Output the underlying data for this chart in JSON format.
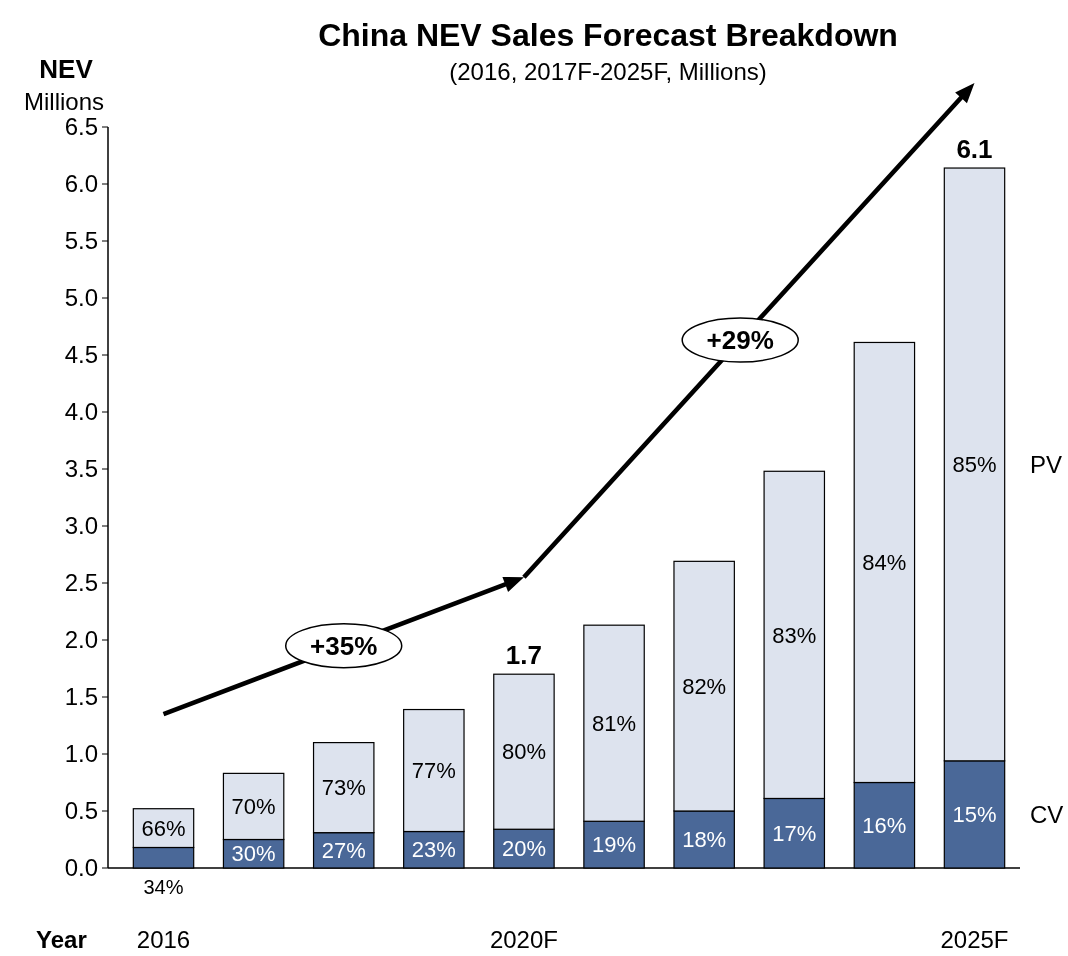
{
  "chart_data": {
    "type": "bar",
    "stacked": true,
    "title": "China NEV Sales Forecast Breakdown",
    "subtitle": "(2016, 2017F-2025F, Millions)",
    "ylabel": "NEV\nMillions",
    "xlabel": "Year",
    "categories": [
      "2016",
      null,
      null,
      null,
      "2020F",
      null,
      null,
      null,
      null,
      "2025F"
    ],
    "series": [
      {
        "name": "CV",
        "color": "#4a6898",
        "values": [
          0.18,
          0.25,
          0.31,
          0.32,
          0.34,
          0.41,
          0.5,
          0.61,
          0.75,
          0.94
        ]
      },
      {
        "name": "PV",
        "color": "#dde3ee",
        "values": [
          0.34,
          0.58,
          0.79,
          1.07,
          1.36,
          1.72,
          2.19,
          2.87,
          3.86,
          5.2
        ]
      }
    ],
    "totals": [
      null,
      null,
      null,
      null,
      "1.7",
      null,
      null,
      null,
      null,
      "6.1"
    ],
    "annotations": [
      "+35%",
      "+29%",
      "34%",
      "30%",
      "27%",
      "23%",
      "20%",
      "19%",
      "18%",
      "17%",
      "16%",
      "15%",
      "66%",
      "70%",
      "73%",
      "77%",
      "80%",
      "81%",
      "82%",
      "83%",
      "84%",
      "85%"
    ],
    "ylim": [
      0,
      6.5
    ],
    "yticks": [
      {
        "value": 0,
        "label": "0.0"
      },
      0.5,
      {
        "value": 1,
        "label": "1.0"
      },
      1.5,
      {
        "value": 2,
        "label": "2.0"
      },
      2.5,
      {
        "value": 3,
        "label": "3.0"
      },
      3.5,
      {
        "value": 4,
        "label": "4.0"
      },
      4.5,
      {
        "value": 5,
        "label": "5.0"
      },
      5.5,
      {
        "value": 6,
        "label": "6.0"
      },
      6.5
    ],
    "legend": "right",
    "grid": false
  }
}
